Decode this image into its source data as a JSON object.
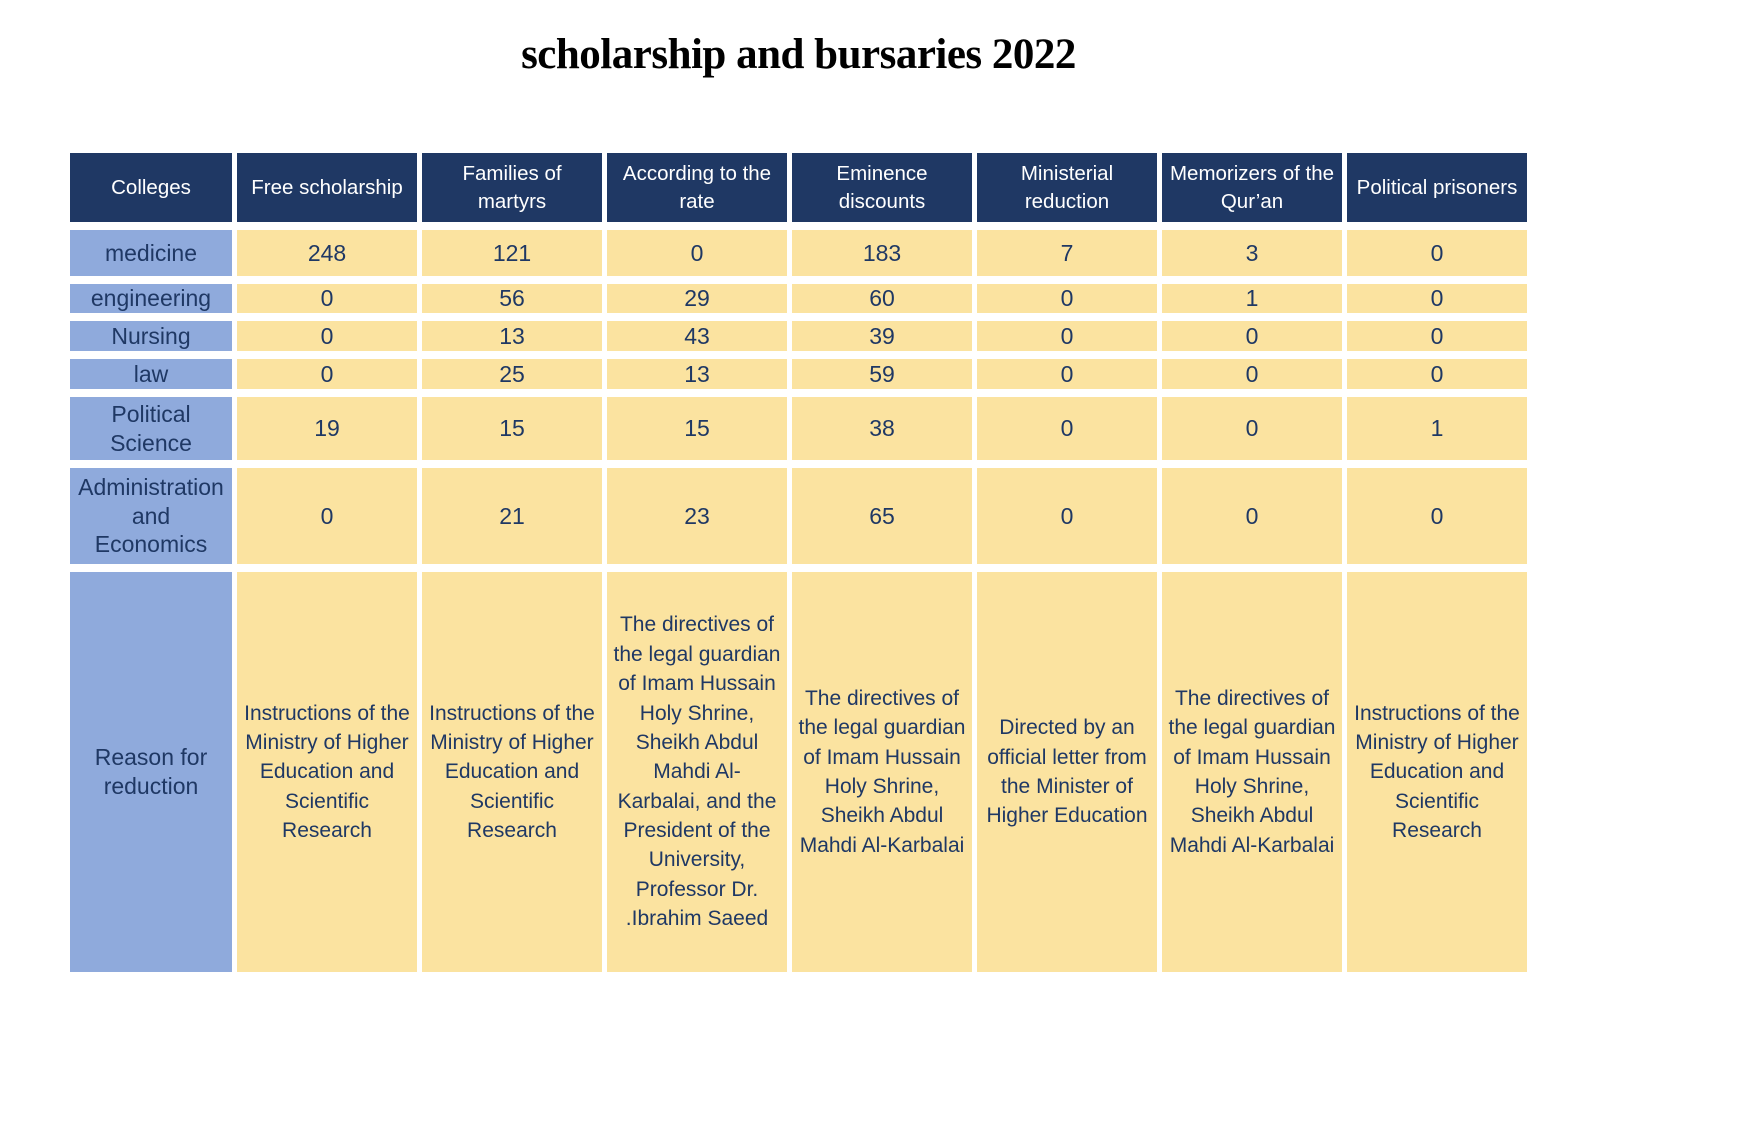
{
  "title": "scholarship and bursaries 2022",
  "colors": {
    "header_bg": "#1F3864",
    "header_text": "#FFFFFF",
    "row_label_bg": "#8FAADC",
    "value_bg": "#FBE3A0",
    "cell_text": "#1F3864",
    "title_text": "#000000",
    "gap": "#FFFFFF"
  },
  "table": {
    "headers": [
      "Colleges",
      "Free scholarship",
      "Families of martyrs",
      "According to the rate",
      "Eminence discounts",
      "Ministerial reduction",
      "Memorizers of the Qur’an",
      "Political prisoners"
    ],
    "rows": [
      {
        "label": "medicine",
        "values": [
          "248",
          "121",
          "0",
          "183",
          "7",
          "3",
          "0"
        ]
      },
      {
        "label": "engineering",
        "values": [
          "0",
          "56",
          "29",
          "60",
          "0",
          "1",
          "0"
        ]
      },
      {
        "label": "Nursing",
        "values": [
          "0",
          "13",
          "43",
          "39",
          "0",
          "0",
          "0"
        ]
      },
      {
        "label": "law",
        "values": [
          "0",
          "25",
          "13",
          "59",
          "0",
          "0",
          "0"
        ]
      },
      {
        "label": "Political Science",
        "values": [
          "19",
          "15",
          "15",
          "38",
          "0",
          "0",
          "1"
        ]
      },
      {
        "label": "Administration and Economics",
        "values": [
          "0",
          "21",
          "23",
          "65",
          "0",
          "0",
          "0"
        ]
      }
    ],
    "reason_row": {
      "label": "Reason for reduction",
      "values": [
        "Instructions of the Ministry of Higher Education and Scientific Research",
        "Instructions of the Ministry of Higher Education and Scientific Research",
        "The directives of the legal guardian of Imam Hussain Holy Shrine, Sheikh Abdul Mahdi Al-Karbalai, and the President of the University, Professor Dr. .Ibrahim Saeed",
        "The directives of the legal guardian of Imam Hussain Holy Shrine, Sheikh Abdul Mahdi Al-Karbalai",
        "Directed by an official letter from the Minister of Higher Education",
        "The directives of the legal guardian of Imam Hussain Holy Shrine, Sheikh Abdul Mahdi Al-Karbalai",
        "Instructions of the Ministry of Higher Education and Scientific Research"
      ]
    }
  }
}
